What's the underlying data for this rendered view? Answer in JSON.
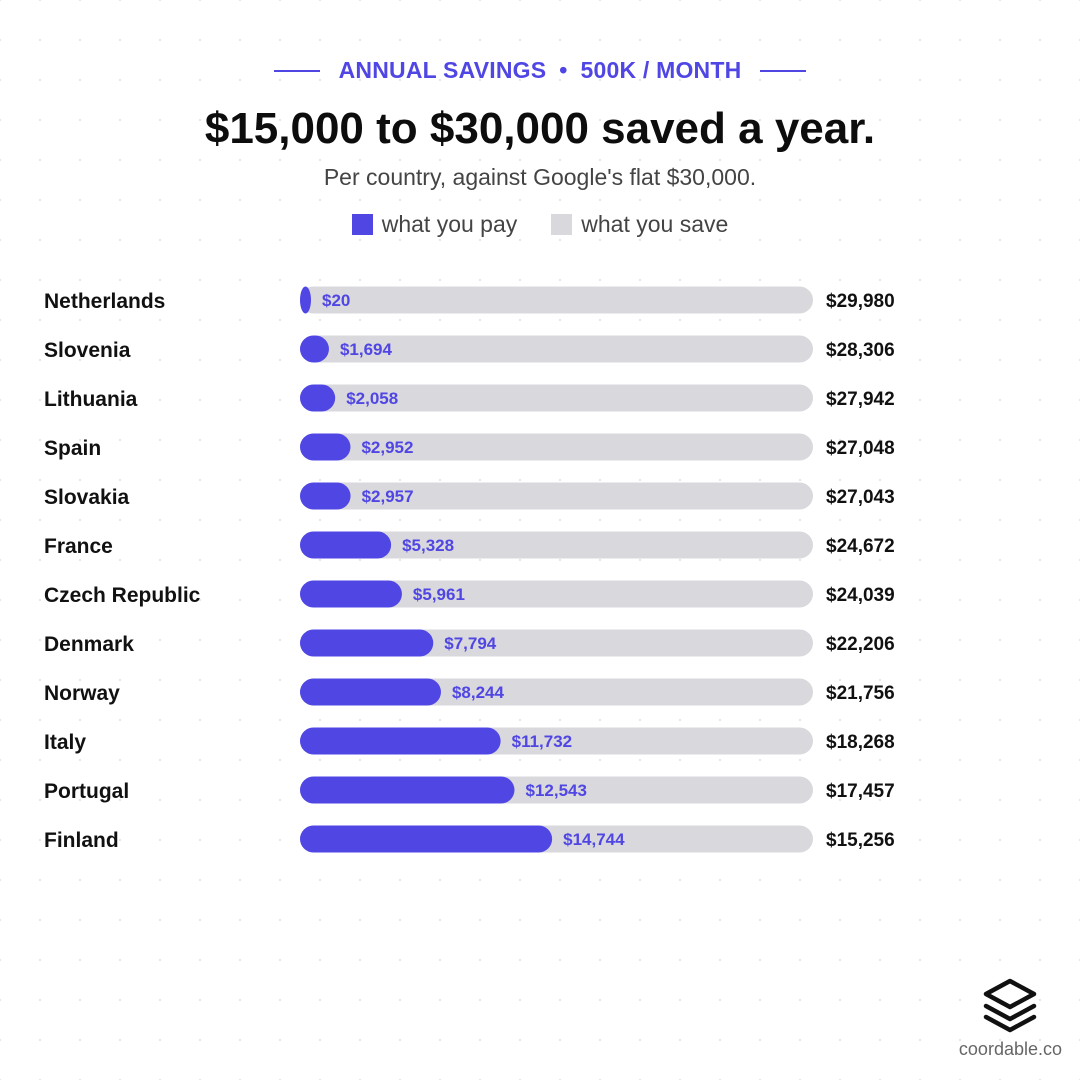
{
  "header": {
    "kicker_left": "ANNUAL SAVINGS",
    "kicker_sep": "•",
    "kicker_right": "500K / MONTH",
    "title": "$15,000 to $30,000 saved a year.",
    "subtitle": "Per country, against Google's flat $30,000."
  },
  "legend": {
    "pay_label": "what you pay",
    "save_label": "what you save"
  },
  "colors": {
    "accent": "#5046e4",
    "track": "#d8d8dd",
    "text": "#111111"
  },
  "chart_data": {
    "type": "bar",
    "orientation": "horizontal",
    "stacked": true,
    "total": 30000,
    "xlim": [
      0,
      30000
    ],
    "categories": [
      "Netherlands",
      "Slovenia",
      "Lithuania",
      "Spain",
      "Slovakia",
      "France",
      "Czech Republic",
      "Denmark",
      "Norway",
      "Italy",
      "Portugal",
      "Finland"
    ],
    "series": [
      {
        "name": "what you pay",
        "color": "#5046e4",
        "values": [
          20,
          1694,
          2058,
          2952,
          2957,
          5328,
          5961,
          7794,
          8244,
          11732,
          12543,
          14744
        ],
        "labels": [
          "$20",
          "$1,694",
          "$2,058",
          "$2,952",
          "$2,957",
          "$5,328",
          "$5,961",
          "$7,794",
          "$8,244",
          "$11,732",
          "$12,543",
          "$14,744"
        ]
      },
      {
        "name": "what you save",
        "color": "#d8d8dd",
        "values": [
          29980,
          28306,
          27942,
          27048,
          27043,
          24672,
          24039,
          22206,
          21756,
          18268,
          17457,
          15256
        ],
        "labels": [
          "$29,980",
          "$28,306",
          "$27,942",
          "$27,048",
          "$27,043",
          "$24,672",
          "$24,039",
          "$22,206",
          "$21,756",
          "$18,268",
          "$17,457",
          "$15,256"
        ]
      }
    ]
  },
  "brand": {
    "icon": "stacked-layers-icon",
    "name": "coordable.co"
  }
}
